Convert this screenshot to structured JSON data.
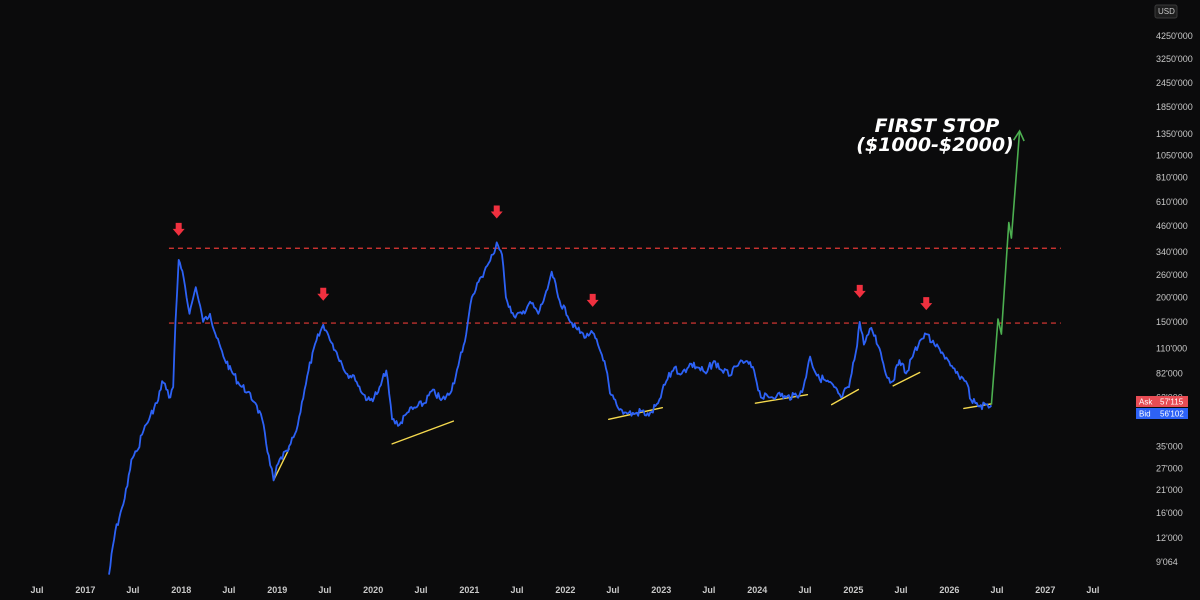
{
  "currency": "USD",
  "annotation_lines": [
    "FIRST STOP",
    "($1000-$2000)"
  ],
  "quote": {
    "ask_label": "Ask",
    "ask_value": "57'115",
    "bid_label": "Bid",
    "bid_value": "56'102"
  },
  "colors": {
    "background": "#0b0b0c",
    "price_line": "#2d62f6",
    "projection": "#4caf50",
    "resistance": "#e53935",
    "arrow": "#f0303f",
    "support": "#f5d94e",
    "ask": "#e84d55",
    "bid": "#2d62f6"
  },
  "chart_data": {
    "type": "line",
    "y_scale": "log",
    "ylim": [
      7500,
      5500000
    ],
    "xlim": [
      "2016-07-01",
      "2027-12-31"
    ],
    "y_ticks": [
      {
        "v": 4250000,
        "label": "4250'000"
      },
      {
        "v": 3250000,
        "label": "3250'000"
      },
      {
        "v": 2450000,
        "label": "2450'000"
      },
      {
        "v": 1850000,
        "label": "1850'000"
      },
      {
        "v": 1350000,
        "label": "1350'000"
      },
      {
        "v": 1050000,
        "label": "1050'000"
      },
      {
        "v": 810000,
        "label": "810'000"
      },
      {
        "v": 610000,
        "label": "610'000"
      },
      {
        "v": 460000,
        "label": "460'000"
      },
      {
        "v": 340000,
        "label": "340'000"
      },
      {
        "v": 260000,
        "label": "260'000"
      },
      {
        "v": 200000,
        "label": "200'000"
      },
      {
        "v": 150000,
        "label": "150'000"
      },
      {
        "v": 110000,
        "label": "110'000"
      },
      {
        "v": 82000,
        "label": "82'000"
      },
      {
        "v": 62000,
        "label": "62'000"
      },
      {
        "v": 35000,
        "label": "35'000"
      },
      {
        "v": 27000,
        "label": "27'000"
      },
      {
        "v": 21000,
        "label": "21'000"
      },
      {
        "v": 16000,
        "label": "16'000"
      },
      {
        "v": 12000,
        "label": "12'000"
      },
      {
        "v": 9064,
        "label": "9'064"
      }
    ],
    "x_ticks": [
      {
        "d": "2016-07-01",
        "label": "Jul"
      },
      {
        "d": "2017-01-01",
        "label": "2017"
      },
      {
        "d": "2017-07-01",
        "label": "Jul"
      },
      {
        "d": "2018-01-01",
        "label": "2018"
      },
      {
        "d": "2018-07-01",
        "label": "Jul"
      },
      {
        "d": "2019-01-01",
        "label": "2019"
      },
      {
        "d": "2019-07-01",
        "label": "Jul"
      },
      {
        "d": "2020-01-01",
        "label": "2020"
      },
      {
        "d": "2020-07-01",
        "label": "Jul"
      },
      {
        "d": "2021-01-01",
        "label": "2021"
      },
      {
        "d": "2021-07-01",
        "label": "Jul"
      },
      {
        "d": "2022-01-01",
        "label": "2022"
      },
      {
        "d": "2022-07-01",
        "label": "Jul"
      },
      {
        "d": "2023-01-01",
        "label": "2023"
      },
      {
        "d": "2023-07-01",
        "label": "Jul"
      },
      {
        "d": "2024-01-01",
        "label": "2024"
      },
      {
        "d": "2024-07-01",
        "label": "Jul"
      },
      {
        "d": "2025-01-01",
        "label": "2025"
      },
      {
        "d": "2025-07-01",
        "label": "Jul"
      },
      {
        "d": "2026-01-01",
        "label": "2026"
      },
      {
        "d": "2026-07-01",
        "label": "Jul"
      },
      {
        "d": "2027-01-01",
        "label": "2027"
      },
      {
        "d": "2027-07-01",
        "label": "Jul"
      }
    ],
    "series": [
      {
        "type": "price",
        "points": [
          [
            "2017-04-01",
            7800
          ],
          [
            "2017-04-25",
            13000
          ],
          [
            "2017-05-20",
            17000
          ],
          [
            "2017-06-10",
            22000
          ],
          [
            "2017-06-25",
            30000
          ],
          [
            "2017-07-15",
            33000
          ],
          [
            "2017-08-10",
            42000
          ],
          [
            "2017-09-01",
            48000
          ],
          [
            "2017-09-20",
            55000
          ],
          [
            "2017-10-05",
            60000
          ],
          [
            "2017-10-20",
            75000
          ],
          [
            "2017-11-05",
            68000
          ],
          [
            "2017-11-20",
            62000
          ],
          [
            "2017-12-01",
            70000
          ],
          [
            "2017-12-10",
            150000
          ],
          [
            "2017-12-22",
            310000
          ],
          [
            "2018-01-10",
            250000
          ],
          [
            "2018-02-01",
            165000
          ],
          [
            "2018-02-25",
            225000
          ],
          [
            "2018-03-25",
            150000
          ],
          [
            "2018-04-20",
            165000
          ],
          [
            "2018-05-15",
            125000
          ],
          [
            "2018-06-10",
            100000
          ],
          [
            "2018-07-10",
            85000
          ],
          [
            "2018-08-10",
            72000
          ],
          [
            "2018-09-10",
            66000
          ],
          [
            "2018-10-10",
            58000
          ],
          [
            "2018-11-10",
            45000
          ],
          [
            "2018-12-05",
            28000
          ],
          [
            "2018-12-18",
            23500
          ],
          [
            "2019-01-10",
            30000
          ],
          [
            "2019-02-10",
            33000
          ],
          [
            "2019-03-15",
            42000
          ],
          [
            "2019-04-15",
            68000
          ],
          [
            "2019-05-20",
            110000
          ],
          [
            "2019-06-25",
            145000
          ],
          [
            "2019-07-15",
            128000
          ],
          [
            "2019-08-15",
            105000
          ],
          [
            "2019-09-20",
            82000
          ],
          [
            "2019-10-20",
            80000
          ],
          [
            "2019-11-20",
            65000
          ],
          [
            "2019-12-20",
            60000
          ],
          [
            "2020-01-20",
            66000
          ],
          [
            "2020-02-20",
            85000
          ],
          [
            "2020-03-13",
            48000
          ],
          [
            "2020-04-10",
            45000
          ],
          [
            "2020-05-10",
            52000
          ],
          [
            "2020-06-10",
            55000
          ],
          [
            "2020-07-15",
            58000
          ],
          [
            "2020-08-15",
            68000
          ],
          [
            "2020-09-15",
            60000
          ],
          [
            "2020-10-20",
            65000
          ],
          [
            "2020-11-20",
            90000
          ],
          [
            "2020-12-20",
            130000
          ],
          [
            "2021-01-10",
            200000
          ],
          [
            "2021-02-10",
            250000
          ],
          [
            "2021-03-10",
            290000
          ],
          [
            "2021-04-01",
            330000
          ],
          [
            "2021-04-15",
            380000
          ],
          [
            "2021-05-05",
            330000
          ],
          [
            "2021-05-20",
            200000
          ],
          [
            "2021-06-20",
            160000
          ],
          [
            "2021-07-20",
            165000
          ],
          [
            "2021-08-20",
            190000
          ],
          [
            "2021-09-20",
            165000
          ],
          [
            "2021-10-25",
            220000
          ],
          [
            "2021-11-10",
            270000
          ],
          [
            "2021-12-05",
            200000
          ],
          [
            "2022-01-10",
            160000
          ],
          [
            "2022-02-10",
            140000
          ],
          [
            "2022-03-20",
            125000
          ],
          [
            "2022-04-10",
            135000
          ],
          [
            "2022-05-10",
            110000
          ],
          [
            "2022-05-30",
            95000
          ],
          [
            "2022-06-20",
            65000
          ],
          [
            "2022-07-20",
            55000
          ],
          [
            "2022-08-20",
            52000
          ],
          [
            "2022-09-20",
            51000
          ],
          [
            "2022-10-20",
            53000
          ],
          [
            "2022-11-15",
            50000
          ],
          [
            "2022-12-20",
            58000
          ],
          [
            "2023-01-20",
            75000
          ],
          [
            "2023-02-20",
            88000
          ],
          [
            "2023-03-20",
            82000
          ],
          [
            "2023-04-20",
            92000
          ],
          [
            "2023-05-20",
            88000
          ],
          [
            "2023-06-20",
            82000
          ],
          [
            "2023-07-20",
            95000
          ],
          [
            "2023-08-20",
            85000
          ],
          [
            "2023-09-20",
            80000
          ],
          [
            "2023-10-20",
            90000
          ],
          [
            "2023-11-20",
            95000
          ],
          [
            "2023-12-20",
            85000
          ],
          [
            "2024-01-15",
            62000
          ],
          [
            "2024-02-20",
            62000
          ],
          [
            "2024-03-20",
            65000
          ],
          [
            "2024-04-20",
            62000
          ],
          [
            "2024-05-20",
            64000
          ],
          [
            "2024-06-20",
            66000
          ],
          [
            "2024-07-20",
            100000
          ],
          [
            "2024-08-15",
            80000
          ],
          [
            "2024-09-20",
            75000
          ],
          [
            "2024-10-20",
            70000
          ],
          [
            "2024-11-15",
            62000
          ],
          [
            "2024-12-15",
            70000
          ],
          [
            "2025-01-10",
            105000
          ],
          [
            "2025-01-25",
            150000
          ],
          [
            "2025-02-10",
            115000
          ],
          [
            "2025-03-10",
            140000
          ],
          [
            "2025-04-10",
            110000
          ],
          [
            "2025-05-10",
            78000
          ],
          [
            "2025-06-01",
            75000
          ],
          [
            "2025-06-25",
            96000
          ],
          [
            "2025-07-20",
            82000
          ],
          [
            "2025-08-15",
            100000
          ],
          [
            "2025-09-10",
            120000
          ],
          [
            "2025-10-05",
            130000
          ],
          [
            "2025-11-05",
            115000
          ],
          [
            "2025-12-05",
            105000
          ],
          [
            "2026-01-05",
            90000
          ],
          [
            "2026-02-05",
            80000
          ],
          [
            "2026-03-05",
            75000
          ],
          [
            "2026-03-25",
            60000
          ],
          [
            "2026-04-20",
            56000
          ],
          [
            "2026-05-20",
            57000
          ],
          [
            "2026-06-10",
            56500
          ]
        ]
      },
      {
        "type": "projection",
        "points": [
          [
            "2026-06-10",
            57000
          ],
          [
            "2026-07-05",
            155000
          ],
          [
            "2026-07-18",
            130000
          ],
          [
            "2026-08-15",
            480000
          ],
          [
            "2026-08-25",
            400000
          ],
          [
            "2026-09-25",
            1400000
          ]
        ]
      }
    ],
    "resistance_lines": [
      {
        "y": 355000,
        "from": "2017-11-15",
        "to": "2027-03-01"
      },
      {
        "y": 148000,
        "from": "2017-11-15",
        "to": "2027-03-01"
      }
    ],
    "support_lines": [
      [
        [
          "2018-12-18",
          23500
        ],
        [
          "2019-02-15",
          34000
        ]
      ],
      [
        [
          "2020-03-13",
          36000
        ],
        [
          "2020-11-01",
          47000
        ]
      ],
      [
        [
          "2022-06-15",
          48000
        ],
        [
          "2023-01-05",
          55000
        ]
      ],
      [
        [
          "2023-12-25",
          58000
        ],
        [
          "2024-07-10",
          64000
        ]
      ],
      [
        [
          "2024-10-10",
          57000
        ],
        [
          "2025-01-20",
          68000
        ]
      ],
      [
        [
          "2025-06-01",
          71000
        ],
        [
          "2025-09-10",
          83000
        ]
      ],
      [
        [
          "2026-02-25",
          54500
        ],
        [
          "2026-06-10",
          57500
        ]
      ]
    ],
    "arrows": [
      {
        "d": "2017-12-22",
        "y": 310000
      },
      {
        "d": "2019-06-25",
        "y": 145000
      },
      {
        "d": "2021-04-15",
        "y": 380000
      },
      {
        "d": "2022-04-15",
        "y": 135000
      },
      {
        "d": "2025-01-25",
        "y": 150000
      },
      {
        "d": "2025-10-05",
        "y": 130000
      }
    ]
  }
}
